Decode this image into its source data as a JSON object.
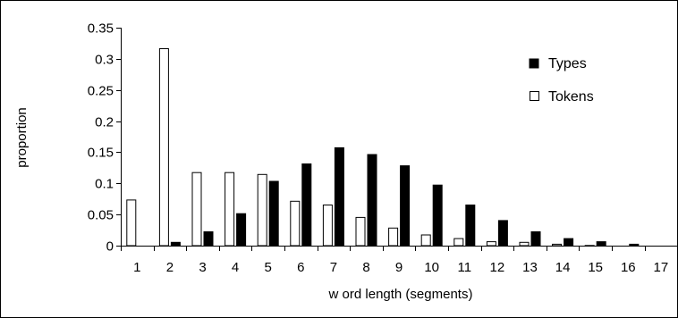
{
  "chart_data": {
    "type": "bar",
    "title": "",
    "xlabel": "w ord length (segments)",
    "ylabel": "proportion",
    "ylim": [
      0,
      0.35
    ],
    "yticks": [
      "0",
      "0.05",
      "0.1",
      "0.15",
      "0.2",
      "0.25",
      "0.3",
      "0.35"
    ],
    "categories": [
      "1",
      "2",
      "3",
      "4",
      "5",
      "6",
      "7",
      "8",
      "9",
      "10",
      "11",
      "12",
      "13",
      "14",
      "15",
      "16",
      "17"
    ],
    "series": [
      {
        "name": "Types",
        "color": "#000000",
        "values": [
          0,
          0.006,
          0.023,
          0.052,
          0.104,
          0.132,
          0.158,
          0.147,
          0.129,
          0.098,
          0.066,
          0.041,
          0.023,
          0.012,
          0.007,
          0.003,
          0
        ]
      },
      {
        "name": "Tokens",
        "color": "#ffffff",
        "values": [
          0.074,
          0.317,
          0.118,
          0.118,
          0.115,
          0.072,
          0.066,
          0.046,
          0.029,
          0.018,
          0.012,
          0.007,
          0.006,
          0.003,
          0.001,
          0,
          0
        ]
      }
    ],
    "grid": false,
    "legend_position": "top-right"
  }
}
